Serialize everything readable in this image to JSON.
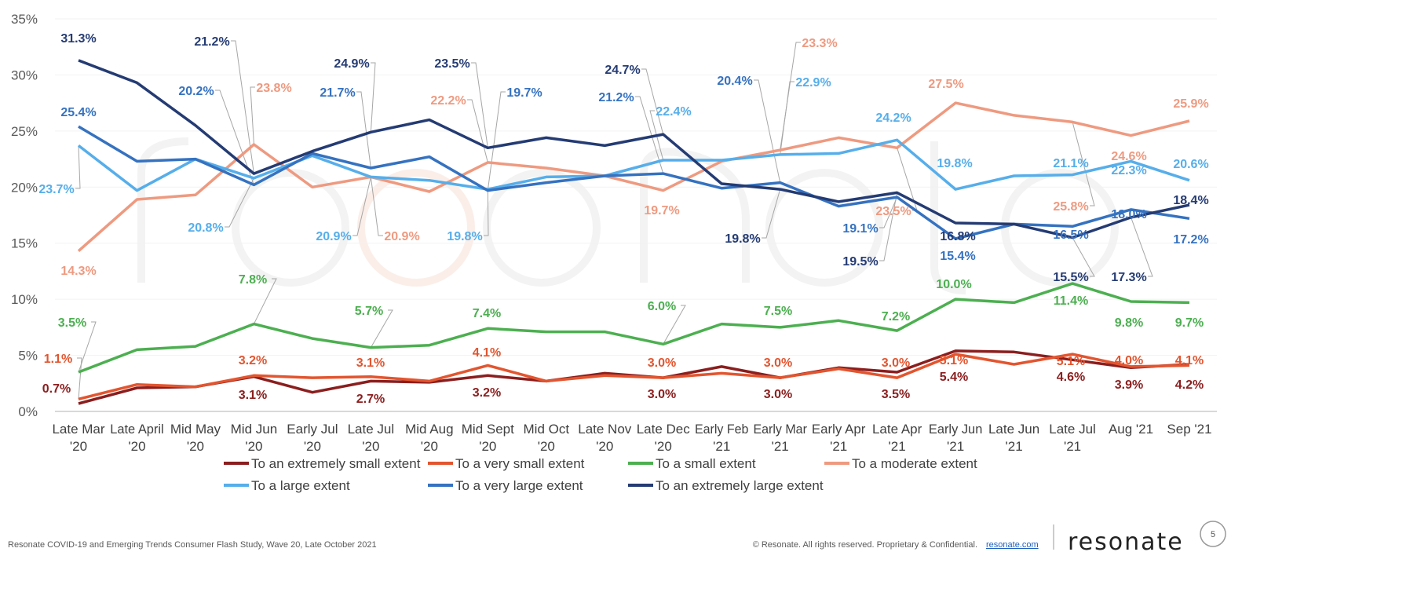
{
  "chart_data": {
    "type": "line",
    "title": "",
    "xlabel": "",
    "ylabel": "",
    "ylim": [
      0,
      35
    ],
    "yticks": [
      "0%",
      "5%",
      "10%",
      "15%",
      "20%",
      "25%",
      "30%",
      "35%"
    ],
    "grid": true,
    "legend_position": "bottom",
    "categories": [
      [
        "Late Mar",
        "'20"
      ],
      [
        "Late April",
        "'20"
      ],
      [
        "Mid May",
        "'20"
      ],
      [
        "Mid Jun",
        "'20"
      ],
      [
        "Early Jul",
        "'20"
      ],
      [
        "Late Jul",
        "'20"
      ],
      [
        "Mid Aug",
        "'20"
      ],
      [
        "Mid Sept",
        "'20"
      ],
      [
        "Mid Oct",
        "'20"
      ],
      [
        "Late Nov",
        "'20"
      ],
      [
        "Late Dec",
        "'20"
      ],
      [
        "Early Feb",
        "'21"
      ],
      [
        "Early Mar",
        "'21"
      ],
      [
        "Early Apr",
        "'21"
      ],
      [
        "Late Apr",
        "'21"
      ],
      [
        "Early Jun",
        "'21"
      ],
      [
        "Late Jun",
        "'21"
      ],
      [
        "Late Jul",
        "'21"
      ],
      [
        "Aug '21",
        ""
      ],
      [
        "Sep '21",
        ""
      ]
    ],
    "series": [
      {
        "name": "To an extremely small extent",
        "color": "#8B1E1E",
        "values": [
          0.7,
          2.1,
          2.2,
          3.1,
          1.7,
          2.7,
          2.6,
          3.2,
          2.7,
          3.4,
          3.0,
          4.0,
          3.0,
          3.9,
          3.5,
          5.4,
          5.3,
          4.6,
          3.9,
          4.2
        ],
        "labels": [
          "0.7%",
          null,
          null,
          "3.1%",
          null,
          "2.7%",
          null,
          "3.2%",
          null,
          null,
          "3.0%",
          null,
          "3.0%",
          null,
          "3.5%",
          "5.4%",
          null,
          "4.6%",
          "3.9%",
          "4.2%"
        ]
      },
      {
        "name": "To a very small extent",
        "color": "#E2552F",
        "values": [
          1.1,
          2.4,
          2.2,
          3.2,
          3.0,
          3.1,
          2.7,
          4.1,
          2.7,
          3.2,
          3.0,
          3.4,
          3.0,
          3.8,
          3.0,
          5.1,
          4.2,
          5.1,
          4.0,
          4.1
        ],
        "labels": [
          "1.1%",
          null,
          null,
          "3.2%",
          null,
          "3.1%",
          null,
          "4.1%",
          null,
          null,
          "3.0%",
          null,
          "3.0%",
          null,
          "3.0%",
          "5.1%",
          null,
          "5.1%",
          "4.0%",
          "4.1%"
        ]
      },
      {
        "name": "To a small extent",
        "color": "#4CAF50",
        "values": [
          3.5,
          5.5,
          5.8,
          7.8,
          6.5,
          5.7,
          5.9,
          7.4,
          7.1,
          7.1,
          6.0,
          7.8,
          7.5,
          8.1,
          7.2,
          10.0,
          9.7,
          11.4,
          9.8,
          9.7
        ],
        "labels": [
          "3.5%",
          null,
          null,
          "7.8%",
          null,
          "5.7%",
          null,
          "7.4%",
          null,
          null,
          "6.0%",
          null,
          "7.5%",
          null,
          "7.2%",
          "10.0%",
          null,
          "11.4%",
          "9.8%",
          "9.7%"
        ]
      },
      {
        "name": "To a moderate extent",
        "color": "#EE9A80",
        "values": [
          14.3,
          18.9,
          19.3,
          23.8,
          20.0,
          20.9,
          19.6,
          22.2,
          21.7,
          21.0,
          19.7,
          22.3,
          23.3,
          24.4,
          23.5,
          27.5,
          26.4,
          25.8,
          24.6,
          25.9
        ],
        "labels": [
          "14.3%",
          null,
          null,
          "23.8%",
          null,
          "20.9%",
          null,
          "22.2%",
          null,
          null,
          "19.7%",
          null,
          "23.3%",
          null,
          "23.5%",
          "27.5%",
          null,
          "25.8%",
          "24.6%",
          "25.9%"
        ]
      },
      {
        "name": "To a large extent",
        "color": "#56AEEA",
        "values": [
          23.7,
          19.7,
          22.5,
          20.8,
          22.8,
          20.9,
          20.6,
          19.8,
          20.9,
          21.0,
          22.4,
          22.4,
          22.9,
          23.0,
          24.2,
          19.8,
          21.0,
          21.1,
          22.3,
          20.6
        ],
        "labels": [
          "23.7%",
          null,
          null,
          "20.8%",
          null,
          "20.9%",
          null,
          "19.8%",
          null,
          null,
          "22.4%",
          null,
          "22.9%",
          null,
          "24.2%",
          "19.8%",
          null,
          "21.1%",
          "22.3%",
          "20.6%"
        ]
      },
      {
        "name": "To a very large extent",
        "color": "#3572C0",
        "values": [
          25.4,
          22.3,
          22.5,
          20.2,
          23.0,
          21.7,
          22.7,
          19.7,
          20.4,
          21.0,
          21.2,
          19.9,
          20.4,
          18.3,
          19.1,
          15.4,
          16.7,
          16.5,
          18.0,
          17.2
        ],
        "labels": [
          "25.4%",
          null,
          null,
          "20.2%",
          null,
          "21.7%",
          null,
          "19.7%",
          null,
          null,
          "21.2%",
          null,
          "20.4%",
          null,
          "19.1%",
          "15.4%",
          null,
          "16.5%",
          "18.0%",
          "17.2%"
        ]
      },
      {
        "name": "To an extremely large extent",
        "color": "#243B73",
        "values": [
          31.3,
          29.3,
          25.5,
          21.2,
          23.2,
          24.9,
          26.0,
          23.5,
          24.4,
          23.7,
          24.7,
          20.3,
          19.8,
          18.7,
          19.5,
          16.8,
          16.7,
          15.5,
          17.3,
          18.4
        ],
        "labels": [
          "31.3%",
          null,
          null,
          "21.2%",
          null,
          "24.9%",
          null,
          "23.5%",
          null,
          null,
          "24.7%",
          null,
          "19.8%",
          null,
          "19.5%",
          "16.8%",
          null,
          "15.5%",
          "17.3%",
          "18.4%"
        ]
      }
    ]
  },
  "footer": {
    "study": "Resonate COVID-19 and Emerging Trends Consumer Flash Study, Wave 20, Late October 2021",
    "copyright": "© Resonate. All rights reserved. Proprietary & Confidential.",
    "link": "resonate.com",
    "logo": "resonate",
    "page_number": "5"
  }
}
